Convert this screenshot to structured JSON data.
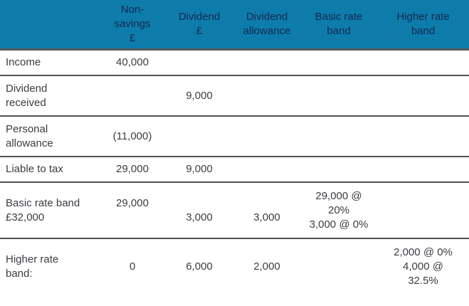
{
  "colors": {
    "header_bg": "#0e7cab",
    "header_text": "#13294f",
    "body_text": "#3a3d42",
    "grid_line": "#4c5055",
    "header_line": "#54575b"
  },
  "table": {
    "columns": [
      {
        "key": "label",
        "lines": []
      },
      {
        "key": "non_savings",
        "lines": [
          "Non-",
          "savings",
          "£"
        ]
      },
      {
        "key": "dividend",
        "lines": [
          "Dividend",
          "£"
        ]
      },
      {
        "key": "dividend_allowance",
        "lines": [
          "Dividend",
          "allowance"
        ]
      },
      {
        "key": "basic_rate_band",
        "lines": [
          "Basic rate",
          "band"
        ]
      },
      {
        "key": "higher_rate_band",
        "lines": [
          "Higher rate",
          "band"
        ]
      }
    ],
    "rows": [
      {
        "name": "income",
        "label": [
          "Income"
        ],
        "non_savings": [
          "40,000"
        ],
        "dividend": [],
        "dividend_allowance": [],
        "basic_rate_band": [],
        "higher_rate_band": []
      },
      {
        "name": "dividend-received",
        "label": [
          "Dividend",
          "received"
        ],
        "non_savings": [],
        "dividend": [
          "9,000"
        ],
        "dividend_allowance": [],
        "basic_rate_band": [],
        "higher_rate_band": []
      },
      {
        "name": "personal-allowance",
        "label": [
          "Personal",
          "allowance"
        ],
        "non_savings": [
          "(11,000)"
        ],
        "dividend": [],
        "dividend_allowance": [],
        "basic_rate_band": [],
        "higher_rate_band": []
      },
      {
        "name": "liable-to-tax",
        "label": [
          "Liable to tax"
        ],
        "non_savings": [
          "29,000"
        ],
        "dividend": [
          "9,000"
        ],
        "dividend_allowance": [],
        "basic_rate_band": [],
        "higher_rate_band": []
      },
      {
        "name": "basic-rate-band",
        "label": [
          "Basic rate band",
          "£32,000"
        ],
        "non_savings": [
          "29,000",
          ""
        ],
        "dividend": [
          "",
          "3,000"
        ],
        "dividend_allowance": [
          "",
          "3,000"
        ],
        "basic_rate_band": [
          "29,000 @",
          "20%",
          "3,000 @ 0%"
        ],
        "higher_rate_band": []
      },
      {
        "name": "higher-rate-band",
        "label": [
          "Higher rate",
          "band:"
        ],
        "non_savings": [
          "0"
        ],
        "dividend": [
          "6,000"
        ],
        "dividend_allowance": [
          "2,000"
        ],
        "basic_rate_band": [],
        "higher_rate_band": [
          "2,000 @ 0%",
          "4,000 @",
          "32.5%"
        ]
      }
    ]
  },
  "chart_data": {
    "type": "table",
    "columns": [
      "",
      "Non-savings £",
      "Dividend £",
      "Dividend allowance",
      "Basic rate band",
      "Higher rate band"
    ],
    "rows": [
      [
        "Income",
        "40,000",
        "",
        "",
        "",
        ""
      ],
      [
        "Dividend received",
        "",
        "9,000",
        "",
        "",
        ""
      ],
      [
        "Personal allowance",
        "(11,000)",
        "",
        "",
        "",
        ""
      ],
      [
        "Liable to tax",
        "29,000",
        "9,000",
        "",
        "",
        ""
      ],
      [
        "Basic rate band £32,000",
        "29,000",
        "3,000",
        "3,000",
        "29,000 @ 20% 3,000 @ 0%",
        ""
      ],
      [
        "Higher rate band:",
        "0",
        "6,000",
        "2,000",
        "",
        "2,000 @ 0% 4,000 @ 32.5%"
      ]
    ]
  }
}
